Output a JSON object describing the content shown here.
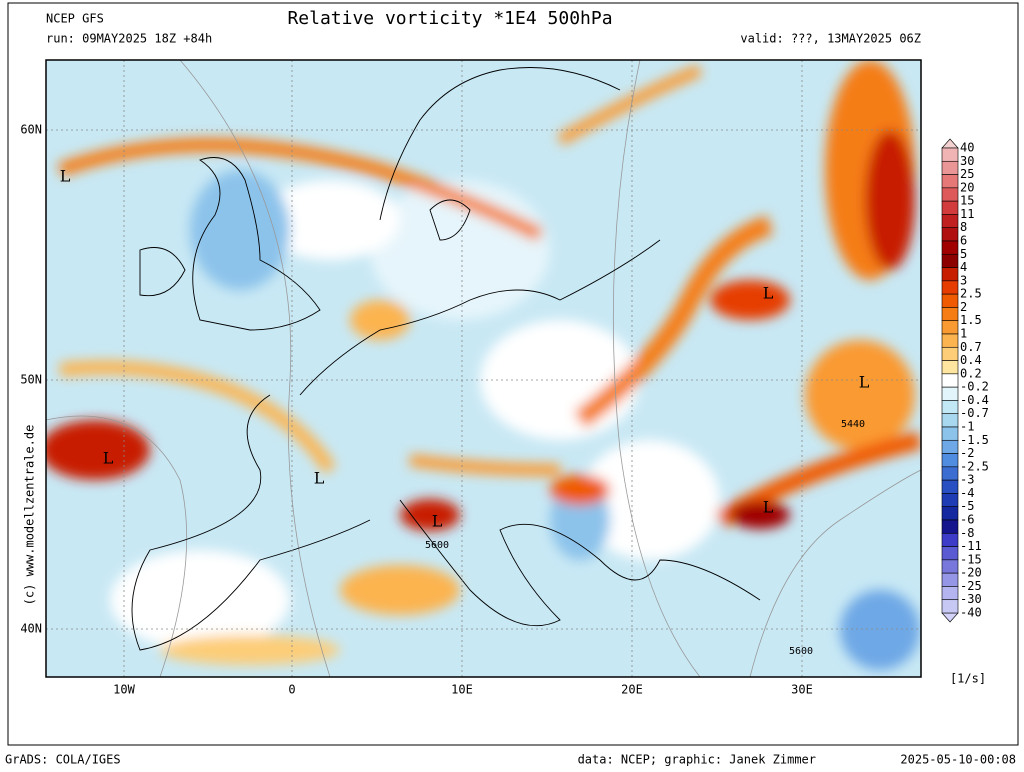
{
  "header": {
    "model": "NCEP GFS",
    "title": "Relative vorticity *1E4 500hPa",
    "run": "run: 09MAY2025 18Z +84h",
    "valid": "valid: ???, 13MAY2025 06Z"
  },
  "map": {
    "lat_labels": [
      "60N",
      "50N",
      "40N"
    ],
    "lon_labels": [
      "10W",
      "0",
      "10E",
      "20E",
      "30E"
    ],
    "lows": [
      "L",
      "L",
      "L",
      "L",
      "L",
      "L",
      "L"
    ],
    "contour_labels": [
      "5600",
      "5440",
      "5600"
    ]
  },
  "watermark": "(c) www.modellzentrale.de",
  "colorbar": {
    "labels": [
      "40",
      "30",
      "25",
      "20",
      "15",
      "11",
      "8",
      "6",
      "5",
      "4",
      "3",
      "2.5",
      "2",
      "1.5",
      "1",
      "0.7",
      "0.4",
      "0.2",
      "-0.2",
      "-0.4",
      "-0.7",
      "-1",
      "-1.5",
      "-2",
      "-2.5",
      "-3",
      "-4",
      "-5",
      "-6",
      "-8",
      "-11",
      "-15",
      "-20",
      "-25",
      "-30",
      "-40"
    ],
    "top_color": "#f5d2d2",
    "bottom_color": "#d2d2fa",
    "colors": [
      "#f0b4b4",
      "#eb9696",
      "#e67878",
      "#de5a5a",
      "#d23c3c",
      "#c02020",
      "#b01010",
      "#a00000",
      "#8c0000",
      "#c81e00",
      "#e63c00",
      "#f05a00",
      "#f57d14",
      "#fa9a32",
      "#fcb450",
      "#fdcd78",
      "#fee6a0",
      "#ffffff",
      "#e1f5fa",
      "#c3e8f5",
      "#a8d8f0",
      "#8cc3eb",
      "#6ea8e6",
      "#508ce0",
      "#3c6ed2",
      "#2850c3",
      "#1e3cb4",
      "#1428a0",
      "#14148c",
      "#3c3cc8",
      "#5a5ad2",
      "#7878dc",
      "#9696e6",
      "#b4b4f0",
      "#c8c8f5"
    ],
    "unit": "[1/s]"
  },
  "footer": {
    "left": "GrADS: COLA/IGES",
    "credit": "data: NCEP; graphic: Janek Zimmer",
    "timestamp": "2025-05-10-00:08"
  }
}
